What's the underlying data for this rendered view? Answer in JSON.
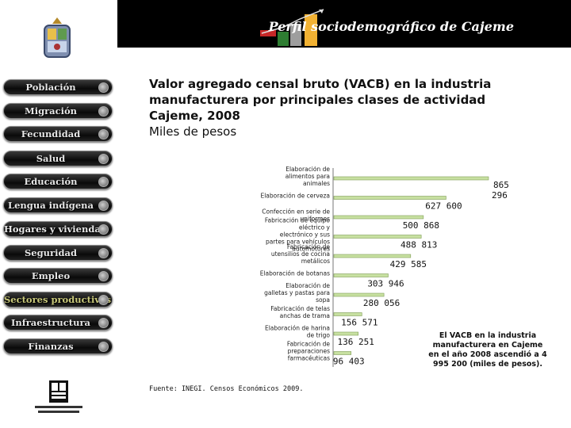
{
  "header": {
    "title": "Perfil sociodemográfico de Cajeme"
  },
  "sidebar": {
    "items": [
      {
        "label": "Población",
        "active": false
      },
      {
        "label": "Migración",
        "active": false
      },
      {
        "label": "Fecundidad",
        "active": false
      },
      {
        "label": "Salud",
        "active": false
      },
      {
        "label": "Educación",
        "active": false
      },
      {
        "label": "Lengua indígena",
        "active": false
      },
      {
        "label": "Hogares y viviendas",
        "active": false
      },
      {
        "label": "Seguridad",
        "active": false
      },
      {
        "label": "Empleo",
        "active": false
      },
      {
        "label": "Sectores productivos",
        "active": true
      },
      {
        "label": "Infraestructura",
        "active": false
      },
      {
        "label": "Finanzas",
        "active": false
      }
    ]
  },
  "main": {
    "title_line1": "Valor agregado censal bruto (VACB) en la industria",
    "title_line2": "manufacturera por principales clases de actividad",
    "title_line3": "Cajeme, 2008",
    "unit": "Miles de pesos",
    "note": "El VACB en la industria manufacturera en Cajeme en el año 2008 ascendió a 4 995 200 (miles de pesos).",
    "source": "Fuente: INEGI. Censos Económicos 2009."
  },
  "chart_data": {
    "type": "bar",
    "orientation": "horizontal",
    "categories": [
      "Elaboración de alimentos para animales",
      "Elaboración de cerveza",
      "Confección en serie de uniformes",
      "Fabricación de equipo eléctrico y electrónico y sus partes para vehículos automotores",
      "Fabricación de utensilios de cocina metálicos",
      "Elaboración de botanas",
      "Elaboración de galletas y pastas para sopa",
      "Fabricación de telas anchas de trama",
      "Elaboración de harina de trigo",
      "Fabricación de preparaciones farmacéuticas"
    ],
    "values": [
      865296,
      627600,
      500868,
      488813,
      429585,
      303946,
      280056,
      156571,
      136251,
      96403
    ],
    "value_labels": [
      "865 296",
      "627 600",
      "500 868",
      "488 813",
      "429 585",
      "303 946",
      "280 056",
      "156 571",
      "136 251",
      "96 403"
    ],
    "colors": {
      "bar_fill": "#c7e0a1",
      "bar_stroke": "#7f9c55"
    }
  }
}
